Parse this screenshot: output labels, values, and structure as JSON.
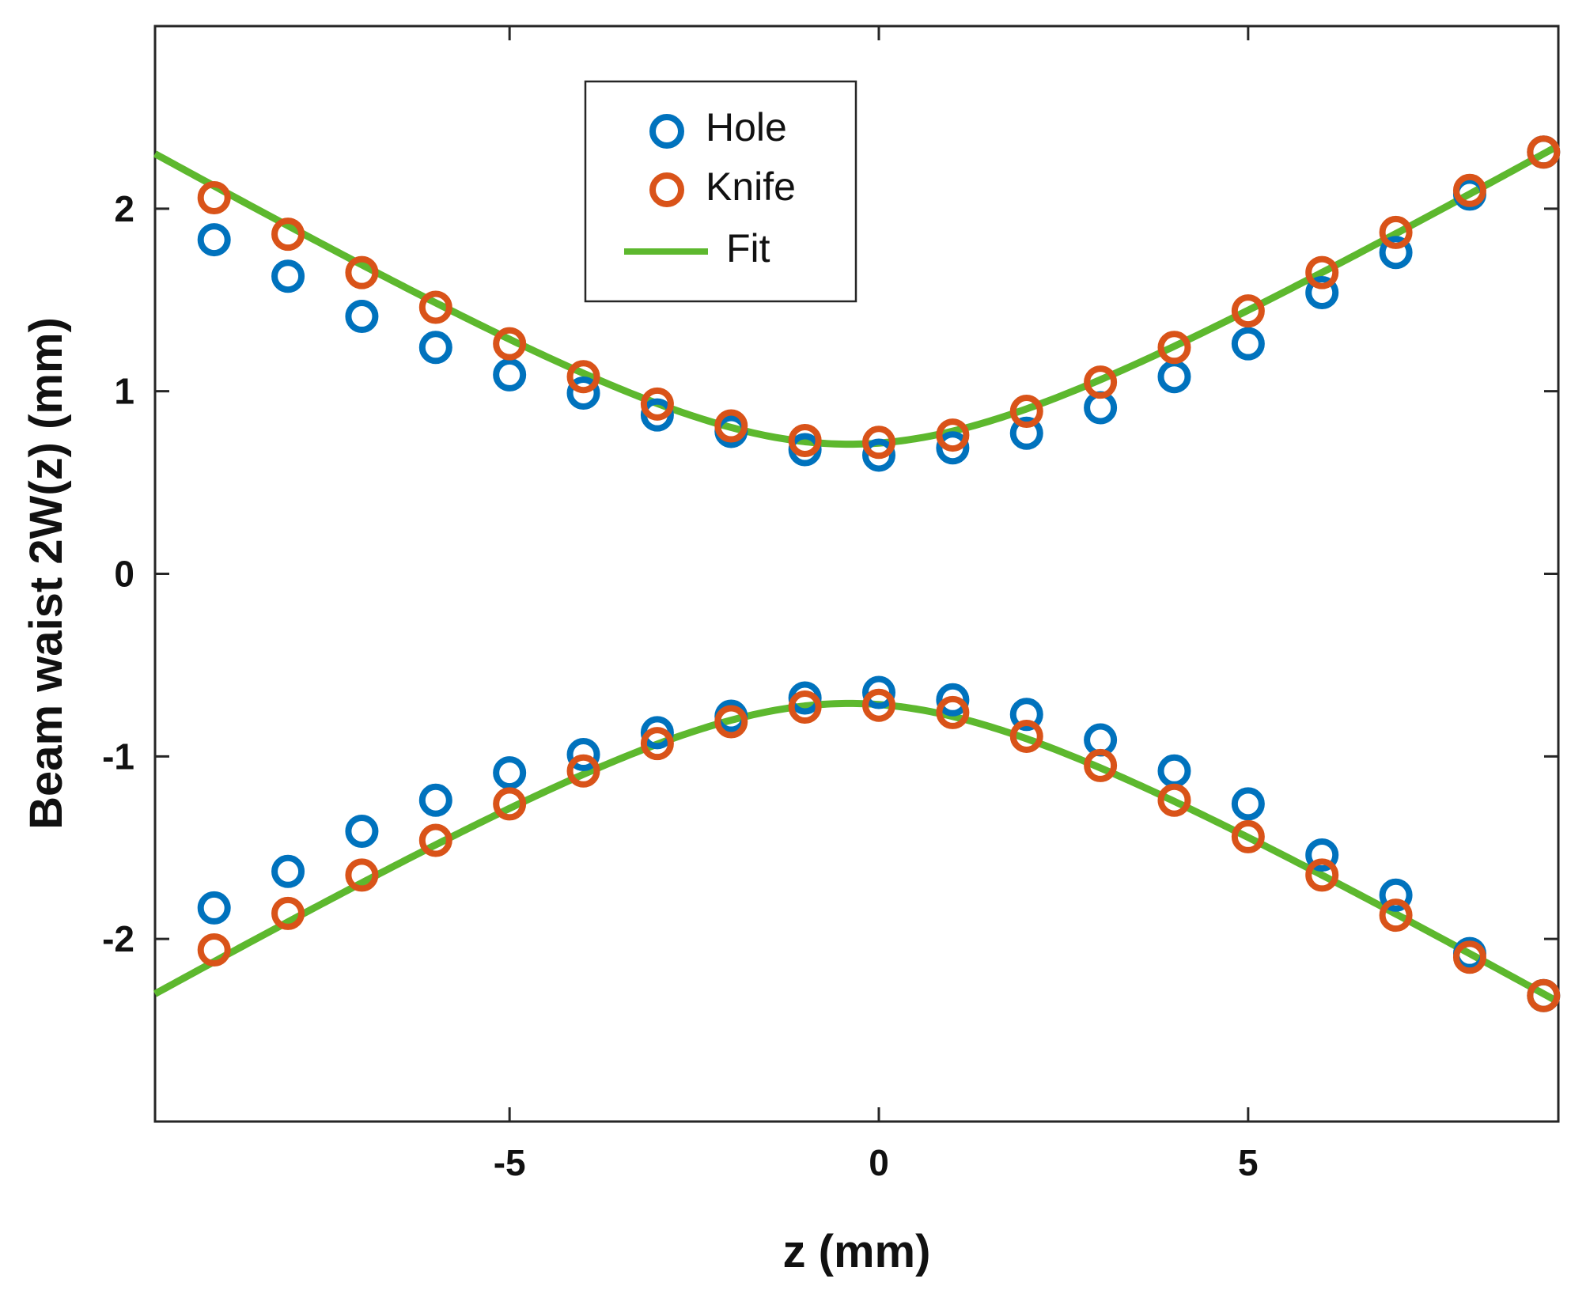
{
  "chart_data": {
    "type": "scatter",
    "xlabel": "z (mm)",
    "ylabel": "Beam waist 2W(z) (mm)",
    "xlim": [
      -9.8,
      9.2
    ],
    "ylim": [
      -3.0,
      3.0
    ],
    "xticks": [
      -5,
      0,
      5
    ],
    "xtick_labels": [
      "-5",
      "0",
      "5"
    ],
    "yticks": [
      -2,
      -1,
      0,
      1,
      2
    ],
    "ytick_labels": [
      "-2",
      "-1",
      "0",
      "1",
      "2"
    ],
    "grid": false,
    "legend_position": "top-center",
    "x": [
      -9,
      -8,
      -7,
      -6,
      -5,
      -4,
      -3,
      -2,
      -1,
      0,
      1,
      2,
      3,
      4,
      5,
      6,
      7,
      8,
      9
    ],
    "series": [
      {
        "name": "Hole",
        "marker": "circle",
        "color": "#0072BD",
        "upper": [
          1.83,
          1.63,
          1.41,
          1.24,
          1.09,
          0.99,
          0.87,
          0.78,
          0.68,
          0.65,
          0.69,
          0.77,
          0.91,
          1.08,
          1.26,
          1.54,
          1.76,
          2.08,
          2.31
        ],
        "lower": [
          -1.83,
          -1.63,
          -1.41,
          -1.24,
          -1.09,
          -0.99,
          -0.87,
          -0.78,
          -0.68,
          -0.65,
          -0.69,
          -0.77,
          -0.91,
          -1.08,
          -1.26,
          -1.54,
          -1.76,
          -2.08,
          -2.31
        ]
      },
      {
        "name": "Knife",
        "marker": "circle",
        "color": "#D95319",
        "upper": [
          2.06,
          1.86,
          1.65,
          1.46,
          1.26,
          1.08,
          0.93,
          0.81,
          0.73,
          0.72,
          0.76,
          0.89,
          1.05,
          1.24,
          1.44,
          1.65,
          1.87,
          2.1,
          2.31
        ],
        "lower": [
          -2.06,
          -1.86,
          -1.65,
          -1.46,
          -1.26,
          -1.08,
          -0.93,
          -0.81,
          -0.73,
          -0.72,
          -0.76,
          -0.89,
          -1.05,
          -1.24,
          -1.44,
          -1.65,
          -1.87,
          -2.1,
          -2.31
        ]
      },
      {
        "name": "Fit",
        "type": "line",
        "color": "#5DB82E",
        "model": "gaussian_beam",
        "w0": 0.71,
        "z0": -0.4,
        "zr": 3.05
      }
    ]
  }
}
